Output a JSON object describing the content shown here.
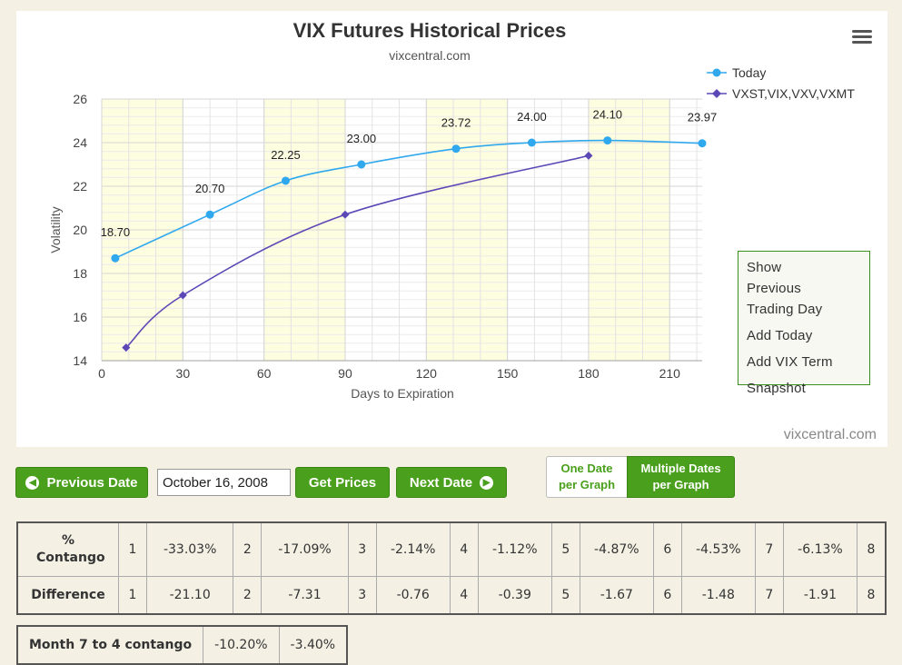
{
  "chart_data": {
    "type": "line",
    "title": "VIX Futures Historical Prices",
    "subtitle": "vixcentral.com",
    "xlabel": "Days to Expiration",
    "ylabel": "Volatility",
    "xlim": [
      0,
      222
    ],
    "ylim": [
      14,
      26
    ],
    "x_ticks": [
      0,
      30,
      60,
      90,
      120,
      150,
      180,
      210
    ],
    "y_ticks": [
      14,
      16,
      18,
      20,
      22,
      24,
      26
    ],
    "x_tick_labels": [
      "0",
      "30",
      "60",
      "90",
      "120",
      "150",
      "180",
      "210"
    ],
    "y_tick_labels": [
      "14",
      "16",
      "18",
      "20",
      "22",
      "24",
      "26"
    ],
    "bands": [
      [
        0,
        30
      ],
      [
        60,
        90
      ],
      [
        120,
        150
      ],
      [
        180,
        210
      ]
    ],
    "grid": true,
    "legend_position": "top-right",
    "series": [
      {
        "name": "Today",
        "color": "#2fa8ee",
        "marker": "circle",
        "x": [
          5,
          40,
          68,
          96,
          131,
          159,
          187,
          222
        ],
        "y": [
          18.7,
          20.7,
          22.25,
          23.0,
          23.72,
          24.0,
          24.1,
          23.97
        ],
        "labels": [
          "18.70",
          "20.70",
          "22.25",
          "23.00",
          "23.72",
          "24.00",
          "24.10",
          "23.97"
        ]
      },
      {
        "name": "VXST,VIX,VXV,VXMT",
        "color": "#5b48b6",
        "marker": "diamond",
        "x": [
          9,
          30,
          90,
          180
        ],
        "y": [
          14.6,
          17.0,
          20.7,
          23.4
        ]
      }
    ]
  },
  "menu_icon": "hamburger-menu-icon",
  "side_menu": {
    "items": [
      "Show Previous Trading Day",
      "Add Today",
      "Add VIX Term",
      "Snapshot"
    ]
  },
  "credit": "vixcentral.com",
  "controls": {
    "previous_label": "Previous Date",
    "previous_icon": "circle-arrow-left-icon",
    "date_value": "October 16, 2008",
    "get_prices_label": "Get Prices",
    "next_label": "Next Date",
    "next_icon": "circle-arrow-right-icon",
    "one_date_label": "One Date per Graph",
    "multi_date_label": "Multiple Dates per Graph"
  },
  "colors": {
    "accent_green": "#4aa01c",
    "page_bg": "#f4f1e4",
    "band_yellow": "#fdfde0"
  },
  "contango": {
    "label": "% Contango",
    "pairs": [
      {
        "month": "1",
        "value": "-33.03%"
      },
      {
        "month": "2",
        "value": "-17.09%"
      },
      {
        "month": "3",
        "value": "-2.14%"
      },
      {
        "month": "4",
        "value": "-1.12%"
      },
      {
        "month": "5",
        "value": "-4.87%"
      },
      {
        "month": "6",
        "value": "-4.53%"
      },
      {
        "month": "7",
        "value": "-6.13%"
      }
    ],
    "last_month": "8"
  },
  "difference": {
    "label": "Difference",
    "pairs": [
      {
        "month": "1",
        "value": "-21.10"
      },
      {
        "month": "2",
        "value": "-7.31"
      },
      {
        "month": "3",
        "value": "-0.76"
      },
      {
        "month": "4",
        "value": "-0.39"
      },
      {
        "month": "5",
        "value": "-1.67"
      },
      {
        "month": "6",
        "value": "-1.48"
      },
      {
        "month": "7",
        "value": "-1.91"
      }
    ],
    "last_month": "8"
  },
  "summary": {
    "label": "Month 7 to 4 contango",
    "values": [
      "-10.20%",
      "-3.40%"
    ]
  }
}
